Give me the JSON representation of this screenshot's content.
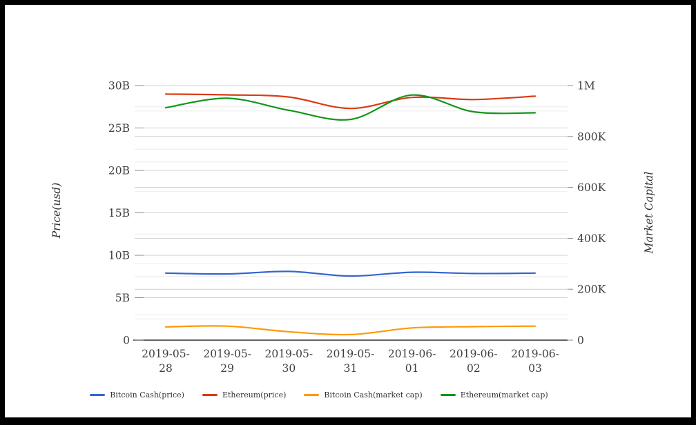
{
  "chart_data": {
    "type": "line",
    "smooth": true,
    "grid": true,
    "legend_position": "bottom",
    "x_categories": [
      "2019-05-28",
      "2019-05-29",
      "2019-05-30",
      "2019-05-31",
      "2019-06-01",
      "2019-06-02",
      "2019-06-03"
    ],
    "left_axis": {
      "title": "Price(usd)",
      "min": 0,
      "max": 30,
      "unit": "B",
      "tick_values": [
        0,
        5,
        10,
        15,
        20,
        25,
        30
      ],
      "tick_labels": [
        "0",
        "5B",
        "10B",
        "15B",
        "20B",
        "25B",
        "30B"
      ],
      "minor_step": 2.5
    },
    "right_axis": {
      "title": "Market Capital",
      "min": 0,
      "max": 1000,
      "unit": "K",
      "tick_values": [
        0,
        200,
        400,
        600,
        800,
        1000
      ],
      "tick_labels": [
        "0",
        "200K",
        "400K",
        "600K",
        "800K",
        "1M"
      ],
      "minor_step": 100
    },
    "series": [
      {
        "name": "Bitcoin Cash(price)",
        "color": "#3366cc",
        "axis": "left",
        "values": [
          7.9,
          7.8,
          8.1,
          7.55,
          8.0,
          7.85,
          7.9
        ]
      },
      {
        "name": "Ethereum(price)",
        "color": "#dc3912",
        "axis": "left",
        "values": [
          29.0,
          28.9,
          28.65,
          27.3,
          28.6,
          28.35,
          28.75
        ]
      },
      {
        "name": "Bitcoin Cash(market cap)",
        "color": "#ff9900",
        "axis": "right",
        "values": [
          52,
          55,
          33,
          22,
          48,
          53,
          55
        ]
      },
      {
        "name": "Ethereum(market cap)",
        "color": "#109618",
        "axis": "right",
        "values": [
          913,
          950,
          903,
          867,
          963,
          897,
          893
        ]
      }
    ],
    "colors": {
      "grid_major": "#cfcfcf",
      "grid_minor": "#ececec",
      "axis_line": "#2f2f2f",
      "tick_mark": "#8a8a8a",
      "tick_text": "#3f3f3f"
    }
  }
}
